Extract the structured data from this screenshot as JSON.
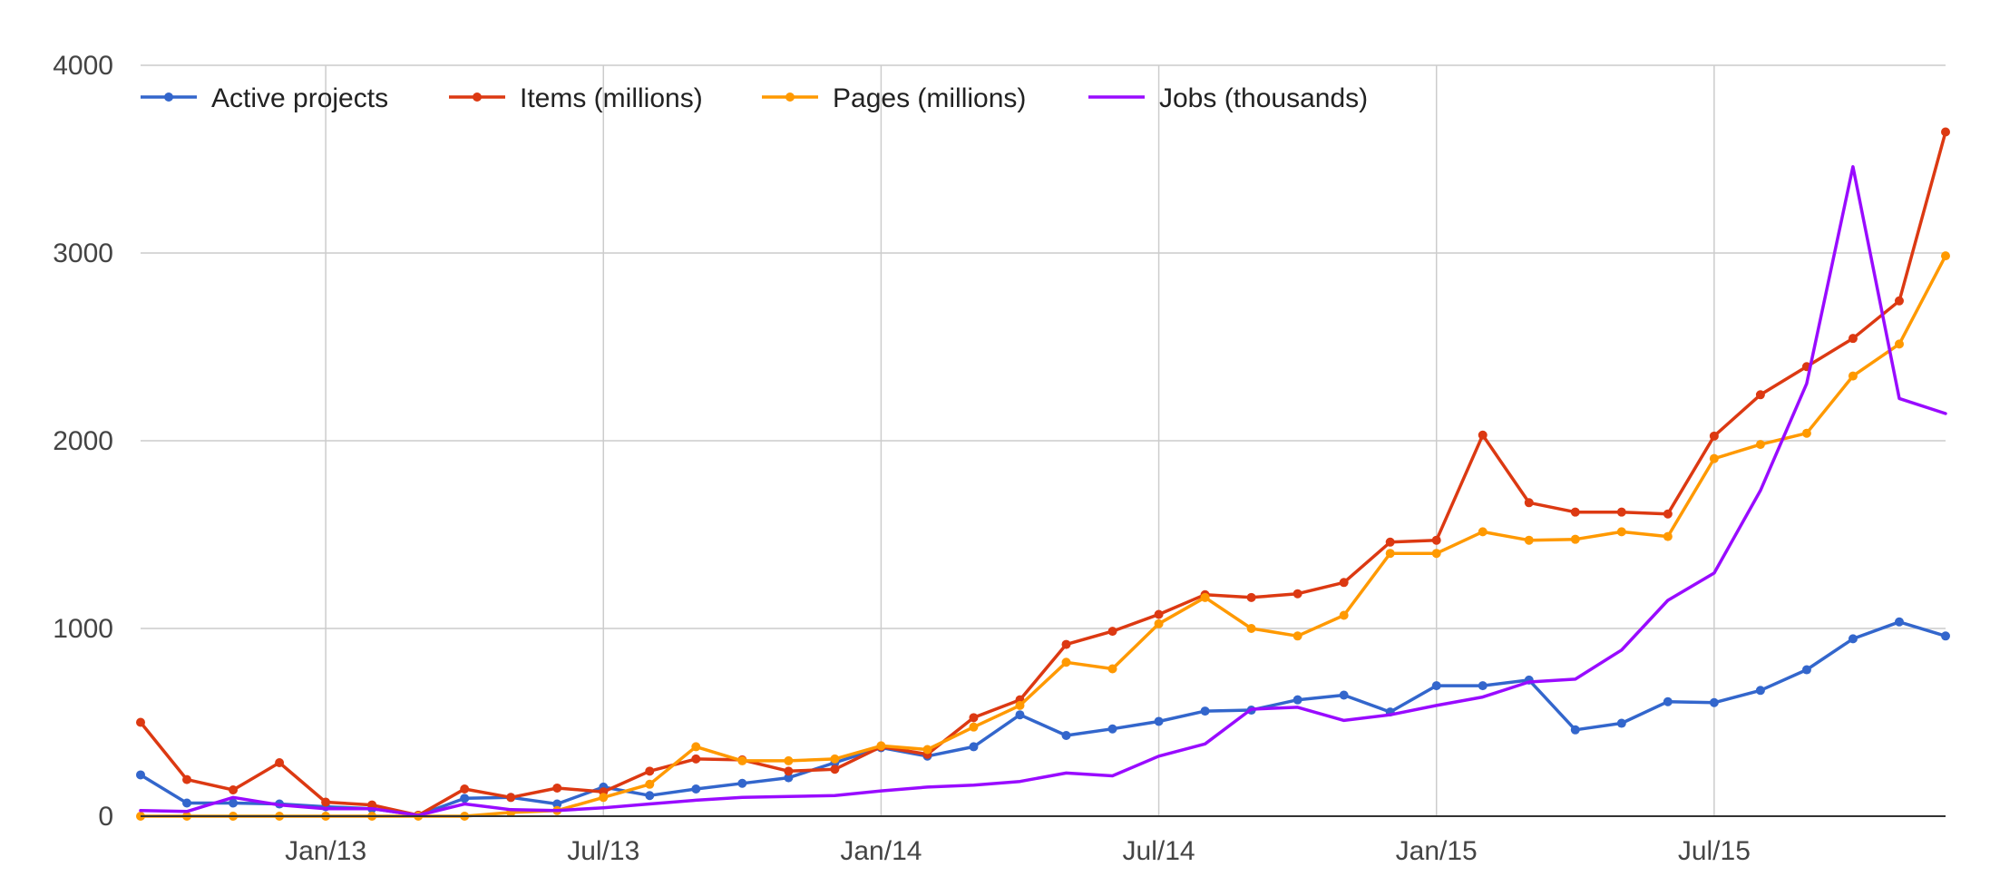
{
  "chart_data": {
    "type": "line",
    "title": "",
    "xlabel": "",
    "ylabel": "",
    "ylim": [
      0,
      4000
    ],
    "yticks": [
      0,
      1000,
      2000,
      3000,
      4000
    ],
    "x": [
      "2012-09",
      "2012-10",
      "2012-11",
      "2012-12",
      "2013-01",
      "2013-02",
      "2013-03",
      "2013-04",
      "2013-05",
      "2013-06",
      "2013-07",
      "2013-08",
      "2013-09",
      "2013-10",
      "2013-11",
      "2013-12",
      "2014-01",
      "2014-02",
      "2014-03",
      "2014-04",
      "2014-05",
      "2014-06",
      "2014-07",
      "2014-08",
      "2014-09",
      "2014-10",
      "2014-11",
      "2014-12",
      "2015-01",
      "2015-02",
      "2015-03",
      "2015-04",
      "2015-05",
      "2015-06",
      "2015-07",
      "2015-08",
      "2015-09",
      "2015-10",
      "2015-11",
      "2015-12"
    ],
    "xticks": [
      {
        "label": "Jan/13",
        "x": "2013-01"
      },
      {
        "label": "Jul/13",
        "x": "2013-07"
      },
      {
        "label": "Jan/14",
        "x": "2014-01"
      },
      {
        "label": "Jul/14",
        "x": "2014-07"
      },
      {
        "label": "Jan/15",
        "x": "2015-01"
      },
      {
        "label": "Jul/15",
        "x": "2015-07"
      }
    ],
    "grid": true,
    "legend_position": "top-left",
    "series": [
      {
        "name": "Active projects",
        "color": "#3366cc",
        "markers": true,
        "values": [
          220,
          70,
          70,
          65,
          50,
          40,
          5,
          95,
          100,
          65,
          155,
          110,
          145,
          175,
          205,
          285,
          365,
          320,
          370,
          540,
          430,
          465,
          505,
          560,
          565,
          620,
          645,
          555,
          695,
          695,
          725,
          460,
          495,
          610,
          605,
          670,
          780,
          945,
          1035,
          960
        ]
      },
      {
        "name": "Items (millions)",
        "color": "#dc3912",
        "markers": true,
        "values": [
          500,
          195,
          140,
          285,
          75,
          60,
          5,
          145,
          100,
          150,
          130,
          240,
          305,
          300,
          240,
          250,
          370,
          330,
          525,
          620,
          915,
          985,
          1075,
          1180,
          1165,
          1185,
          1245,
          1460,
          1470,
          2030,
          1670,
          1620,
          1620,
          1610,
          2025,
          2245,
          2395,
          2545,
          2745,
          3645
        ]
      },
      {
        "name": "Pages (millions)",
        "color": "#ff9900",
        "markers": true,
        "values": [
          0,
          0,
          0,
          0,
          0,
          0,
          0,
          0,
          20,
          30,
          100,
          170,
          370,
          295,
          295,
          305,
          375,
          355,
          475,
          590,
          820,
          785,
          1025,
          1165,
          1000,
          960,
          1070,
          1400,
          1400,
          1515,
          1470,
          1475,
          1515,
          1490,
          1905,
          1980,
          2040,
          2345,
          2515,
          2985
        ]
      },
      {
        "name": "Jobs (thousands)",
        "color": "#990bff",
        "markers": false,
        "values": [
          30,
          25,
          100,
          60,
          40,
          40,
          5,
          65,
          35,
          30,
          45,
          65,
          85,
          100,
          105,
          110,
          135,
          155,
          165,
          185,
          230,
          215,
          320,
          385,
          570,
          580,
          510,
          540,
          590,
          635,
          715,
          730,
          885,
          1150,
          1295,
          1735,
          2305,
          3460,
          2225,
          2145
        ]
      }
    ]
  }
}
